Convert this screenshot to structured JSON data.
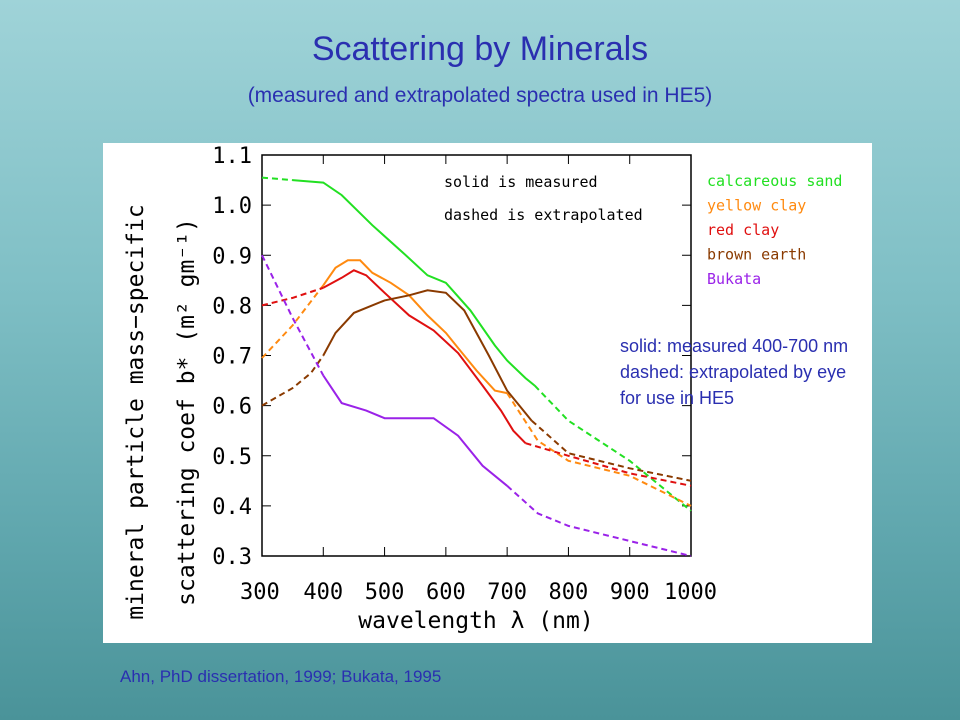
{
  "slide": {
    "title": "Scattering by Minerals",
    "subtitle": "(measured and extrapolated spectra used in HE5)",
    "note_lines": [
      "solid:  measured 400-700 nm",
      "dashed:  extrapolated by eye",
      "for use in HE5"
    ],
    "citation": "Ahn, PhD dissertation, 1999; Bukata, 1995"
  },
  "chart_data": {
    "type": "line",
    "xlabel": "wavelength λ (nm)",
    "ylabel_line1": "mineral particle mass−specific",
    "ylabel_line2": "scattering coef b* (m² gm⁻¹)",
    "xlim": [
      300,
      1000
    ],
    "ylim": [
      0.3,
      1.1
    ],
    "x_ticks": [
      300,
      400,
      500,
      600,
      700,
      800,
      900,
      1000
    ],
    "y_ticks": [
      "0.3",
      "0.4",
      "0.5",
      "0.6",
      "0.7",
      "0.8",
      "0.9",
      "1.0",
      "1.1"
    ],
    "annotations": [
      "solid is measured",
      "dashed is extrapolated"
    ],
    "legend_position": "right",
    "series": [
      {
        "name": "calcareous sand",
        "color": "#22e022",
        "dashed": [
          [
            300,
            1.055
          ],
          [
            350,
            1.05
          ]
        ],
        "solid": [
          [
            350,
            1.05
          ],
          [
            400,
            1.045
          ],
          [
            430,
            1.02
          ],
          [
            480,
            0.96
          ],
          [
            530,
            0.905
          ],
          [
            570,
            0.86
          ],
          [
            600,
            0.845
          ],
          [
            640,
            0.79
          ],
          [
            680,
            0.72
          ],
          [
            700,
            0.69
          ],
          [
            730,
            0.655
          ],
          [
            745,
            0.64
          ]
        ],
        "dashed_after": [
          [
            745,
            0.64
          ],
          [
            800,
            0.57
          ],
          [
            900,
            0.49
          ],
          [
            1000,
            0.39
          ]
        ]
      },
      {
        "name": "yellow clay",
        "color": "#ff8a10",
        "dashed": [
          [
            300,
            0.695
          ],
          [
            350,
            0.76
          ],
          [
            400,
            0.84
          ]
        ],
        "solid": [
          [
            400,
            0.84
          ],
          [
            420,
            0.875
          ],
          [
            440,
            0.89
          ],
          [
            460,
            0.89
          ],
          [
            480,
            0.865
          ],
          [
            510,
            0.845
          ],
          [
            540,
            0.82
          ],
          [
            570,
            0.78
          ],
          [
            600,
            0.745
          ],
          [
            620,
            0.715
          ],
          [
            650,
            0.67
          ],
          [
            680,
            0.63
          ],
          [
            700,
            0.625
          ]
        ],
        "dashed_after": [
          [
            700,
            0.625
          ],
          [
            750,
            0.53
          ],
          [
            800,
            0.49
          ],
          [
            850,
            0.475
          ],
          [
            900,
            0.46
          ],
          [
            1000,
            0.4
          ]
        ]
      },
      {
        "name": "red clay",
        "color": "#e01010",
        "dashed": [
          [
            300,
            0.8
          ],
          [
            350,
            0.815
          ],
          [
            400,
            0.835
          ]
        ],
        "solid": [
          [
            400,
            0.835
          ],
          [
            430,
            0.855
          ],
          [
            450,
            0.87
          ],
          [
            470,
            0.86
          ],
          [
            500,
            0.825
          ],
          [
            540,
            0.78
          ],
          [
            580,
            0.75
          ],
          [
            620,
            0.705
          ],
          [
            660,
            0.64
          ],
          [
            690,
            0.59
          ],
          [
            710,
            0.55
          ],
          [
            730,
            0.525
          ]
        ],
        "dashed_after": [
          [
            730,
            0.525
          ],
          [
            800,
            0.5
          ],
          [
            900,
            0.465
          ],
          [
            1000,
            0.44
          ]
        ]
      },
      {
        "name": "brown earth",
        "color": "#8a3a00",
        "dashed": [
          [
            300,
            0.6
          ],
          [
            350,
            0.635
          ],
          [
            380,
            0.665
          ],
          [
            400,
            0.7
          ]
        ],
        "solid": [
          [
            400,
            0.7
          ],
          [
            420,
            0.745
          ],
          [
            450,
            0.785
          ],
          [
            500,
            0.81
          ],
          [
            540,
            0.82
          ],
          [
            570,
            0.83
          ],
          [
            600,
            0.825
          ],
          [
            630,
            0.79
          ],
          [
            670,
            0.7
          ],
          [
            700,
            0.63
          ],
          [
            720,
            0.6
          ],
          [
            740,
            0.57
          ]
        ],
        "dashed_after": [
          [
            740,
            0.57
          ],
          [
            800,
            0.505
          ],
          [
            900,
            0.475
          ],
          [
            1000,
            0.45
          ]
        ]
      },
      {
        "name": "Bukata",
        "color": "#9a22e8",
        "dashed": [
          [
            300,
            0.9
          ],
          [
            350,
            0.775
          ],
          [
            400,
            0.66
          ]
        ],
        "solid": [
          [
            400,
            0.66
          ],
          [
            430,
            0.605
          ],
          [
            470,
            0.59
          ],
          [
            500,
            0.575
          ],
          [
            550,
            0.575
          ],
          [
            580,
            0.575
          ],
          [
            620,
            0.54
          ],
          [
            660,
            0.48
          ],
          [
            700,
            0.44
          ]
        ],
        "dashed_after": [
          [
            700,
            0.44
          ],
          [
            750,
            0.385
          ],
          [
            800,
            0.36
          ],
          [
            900,
            0.33
          ],
          [
            1000,
            0.3
          ]
        ]
      }
    ]
  }
}
